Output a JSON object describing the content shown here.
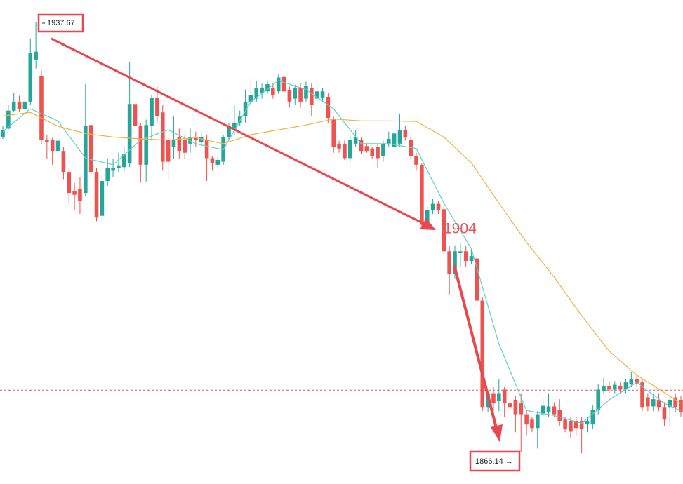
{
  "chart_data": {
    "type": "candlestick",
    "ylim": [
      1860.9,
      1941.4
    ],
    "up_color": "#26a69a",
    "down_color": "#ef5350",
    "candles": {
      "open": [
        1918.6,
        1920.0,
        1923.0,
        1924.5,
        1923.3,
        1924.5,
        1931.5,
        1928.8,
        1918.1,
        1918.1,
        1916.3,
        1916.3,
        1912.8,
        1909.6,
        1910,
        1909.3,
        1920.6,
        1912.8,
        1905.5,
        1911.3,
        1913,
        1913.4,
        1913.6,
        1914.2,
        1924.1,
        1920.4,
        1914,
        1920.4,
        1925.1,
        1922.7,
        1918.1,
        1917,
        1918.6,
        1918.1,
        1917.5,
        1918.6,
        1917.7,
        1918.1,
        1915.1,
        1914,
        1914.5,
        1918.6,
        1919.8,
        1921,
        1922.1,
        1924.5,
        1925,
        1926,
        1926.2,
        1926.8,
        1926.2,
        1928.6,
        1926.4,
        1925,
        1926.8,
        1925,
        1926.8,
        1925,
        1925.2,
        1925.3,
        1921.5,
        1917.5,
        1917.5,
        1915.1,
        1917.5,
        1918.1,
        1917.1,
        1916.7,
        1916.9,
        1915.5,
        1917.5,
        1916.9,
        1917.5,
        1919.8,
        1918.1,
        1915.5,
        1914,
        1904,
        1906.4,
        1907.5,
        1906.6,
        1899.6,
        1895.9,
        1899.4,
        1899.6,
        1898,
        1898.4,
        1891.4,
        1873.7,
        1876,
        1874.7,
        1876.6,
        1874.3,
        1874.9,
        1874.3,
        1872.5,
        1871.6,
        1870.2,
        1872.5,
        1872.9,
        1873.8,
        1873.2,
        1871.6,
        1871.4,
        1871.4,
        1871.4,
        1870.8,
        1870.8,
        1873.2,
        1876.4,
        1877.2,
        1876.6,
        1877.2,
        1876.6,
        1877.5,
        1878.4,
        1877.8,
        1875.3,
        1873.8,
        1874.9,
        1873.7,
        1873.7,
        1875.3,
        1874.9
      ],
      "high": [
        1920.4,
        1923.9,
        1926.0,
        1925.5,
        1925,
        1935.0,
        1937.67,
        1929.7,
        1919,
        1918.5,
        1918.5,
        1917,
        1913.5,
        1911,
        1912,
        1927.4,
        1921,
        1913.5,
        1912.2,
        1915,
        1915,
        1916,
        1917,
        1931.1,
        1925,
        1921,
        1921.5,
        1925.6,
        1927,
        1924,
        1919,
        1922,
        1920,
        1919,
        1920,
        1919.5,
        1919.5,
        1919,
        1915.5,
        1915.5,
        1919,
        1921,
        1923.9,
        1923,
        1926.5,
        1928.6,
        1928,
        1927.5,
        1928,
        1927.5,
        1929,
        1929.7,
        1927,
        1927.3,
        1927.5,
        1927.8,
        1927.5,
        1927,
        1926.8,
        1926,
        1922,
        1918,
        1918,
        1918.8,
        1919.8,
        1918.5,
        1917.5,
        1917,
        1917.5,
        1918,
        1919.5,
        1920,
        1922.5,
        1920.5,
        1918.5,
        1916,
        1914.3,
        1907,
        1908.3,
        1908,
        1907,
        1900.5,
        1900.6,
        1901,
        1900.5,
        1900,
        1899,
        1892,
        1876.5,
        1877,
        1878.4,
        1877,
        1875,
        1875.5,
        1876,
        1873,
        1872,
        1873,
        1875,
        1876,
        1874.5,
        1875,
        1872,
        1872,
        1872,
        1872,
        1872,
        1874,
        1877.5,
        1878.6,
        1878,
        1878,
        1877.8,
        1878.4,
        1879.5,
        1879,
        1878.5,
        1876,
        1876,
        1876,
        1874.5,
        1875.5,
        1876,
        1875.5
      ],
      "low": [
        1918.3,
        1919.7,
        1922.7,
        1922.8,
        1923,
        1923.9,
        1930,
        1917.5,
        1915,
        1914,
        1915.5,
        1911.6,
        1907.5,
        1906.4,
        1905.8,
        1908.7,
        1912.2,
        1904.6,
        1904.6,
        1910.5,
        1912,
        1912.8,
        1912.8,
        1913.6,
        1918,
        1911,
        1911.2,
        1918,
        1921,
        1913,
        1911.6,
        1915,
        1915,
        1915,
        1916,
        1917,
        1917,
        1911.3,
        1913,
        1913.5,
        1914,
        1918,
        1919,
        1920.5,
        1921,
        1924,
        1924.5,
        1925,
        1925.8,
        1925,
        1925.8,
        1925.6,
        1923.5,
        1924,
        1923.5,
        1924.5,
        1922.1,
        1924.5,
        1924.5,
        1921,
        1916,
        1916,
        1914.8,
        1914.5,
        1917,
        1915.8,
        1916,
        1915,
        1913.4,
        1914.5,
        1917,
        1916.5,
        1917,
        1918,
        1915,
        1913,
        1903.5,
        1903,
        1905.8,
        1905.8,
        1899,
        1892.4,
        1895,
        1897,
        1897,
        1897.5,
        1890.5,
        1873,
        1872.8,
        1873,
        1873,
        1872,
        1873,
        1869.5,
        1866.14,
        1869,
        1869.5,
        1866.8,
        1872,
        1872,
        1872,
        1870.5,
        1869.5,
        1868.5,
        1869,
        1866,
        1869.5,
        1870,
        1872.5,
        1876,
        1876,
        1876,
        1876,
        1876,
        1877,
        1877,
        1873,
        1873,
        1873,
        1873,
        1870.5,
        1870.4,
        1872.8,
        1872
      ],
      "close": [
        1919.8,
        1923.0,
        1924.5,
        1923.3,
        1924.5,
        1932.6,
        1932.8,
        1918.1,
        1917.8,
        1916.3,
        1918,
        1912.8,
        1909.3,
        1909,
        1908,
        1920.4,
        1912.8,
        1905.2,
        1911.3,
        1913.4,
        1913.5,
        1913.9,
        1915.7,
        1924.1,
        1920.4,
        1914,
        1920.6,
        1925.1,
        1922.1,
        1914.5,
        1914.5,
        1918.1,
        1916.3,
        1916,
        1918.6,
        1918.1,
        1918.6,
        1915.1,
        1914.3,
        1914.8,
        1918.6,
        1920.4,
        1921,
        1922,
        1924.5,
        1925.6,
        1926.8,
        1926.8,
        1927.4,
        1925.6,
        1928.5,
        1926.2,
        1924.5,
        1926.8,
        1924.5,
        1927.1,
        1923.9,
        1926.2,
        1926.2,
        1921.8,
        1916.9,
        1916.7,
        1915.1,
        1918.1,
        1918.6,
        1916.3,
        1916.3,
        1915.5,
        1915.1,
        1917.5,
        1918.3,
        1919.2,
        1919.8,
        1918.6,
        1915.5,
        1914,
        1904,
        1906.5,
        1907.5,
        1906.4,
        1899.6,
        1895.9,
        1899.6,
        1899.6,
        1898,
        1898.8,
        1891.4,
        1873.7,
        1876,
        1874.3,
        1876,
        1874.3,
        1873.7,
        1872.5,
        1872.5,
        1870.8,
        1870.2,
        1872.5,
        1873.9,
        1873.8,
        1872.5,
        1871.4,
        1870,
        1869.6,
        1870.2,
        1870,
        1871.4,
        1873.2,
        1876.6,
        1877.2,
        1876.6,
        1877.4,
        1876.6,
        1877.8,
        1878.4,
        1877.5,
        1873.7,
        1873.8,
        1875,
        1873.7,
        1871.6,
        1874.9,
        1873.7,
        1872.9
      ]
    },
    "series": [
      {
        "color": "#5fd3c5",
        "x": [
          0,
          5,
          10,
          15,
          20,
          25,
          30,
          35,
          40,
          45,
          50,
          55,
          60,
          65,
          70,
          75,
          80,
          85,
          90,
          95,
          100,
          105,
          110,
          115,
          120,
          123
        ],
        "values": [
          1919.5,
          1923.3,
          1921.3,
          1915.1,
          1914.0,
          1918.1,
          1919.8,
          1917.5,
          1916.5,
          1924.5,
          1928.0,
          1926.5,
          1923.3,
          1917.5,
          1917.5,
          1916.7,
          1907.6,
          1900.0,
          1884.2,
          1873.1,
          1872.3,
          1871.0,
          1874.9,
          1877.8,
          1874.3,
          1873.1
        ]
      },
      {
        "color": "#f5b041",
        "x": [
          0,
          5,
          10,
          15,
          20,
          25,
          30,
          35,
          40,
          45,
          50,
          55,
          60,
          65,
          70,
          75,
          80,
          85,
          90,
          95,
          100,
          105,
          110,
          115,
          120,
          123
        ],
        "values": [
          1922.1,
          1922.7,
          1920.4,
          1919.2,
          1918.6,
          1918.3,
          1918.1,
          1918.5,
          1917.5,
          1919.0,
          1919.8,
          1920.6,
          1921.6,
          1921.3,
          1921.3,
          1921.2,
          1918.6,
          1914.3,
          1907.6,
          1901.1,
          1895.3,
          1888.9,
          1883.0,
          1879.0,
          1876.1,
          1874.3
        ]
      }
    ],
    "price_line": {
      "value": 1876.5,
      "color": "#e05a5a"
    },
    "annotations": [
      {
        "text": "1937.67",
        "color": "#e8474f"
      },
      {
        "text": "1866.14 →",
        "color": "#e8474f"
      },
      {
        "text": "1904",
        "color": "#e8555a"
      }
    ]
  }
}
